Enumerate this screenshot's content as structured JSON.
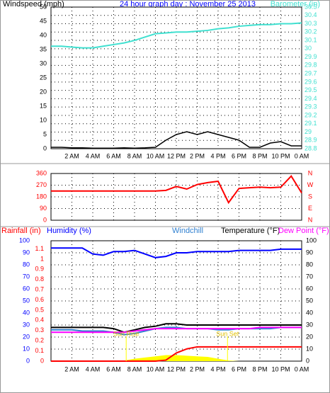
{
  "title": "24 hour graph day : November 25 2013",
  "chart_data": [
    {
      "type": "line",
      "xlim": [
        0,
        24
      ],
      "x": [
        0,
        1,
        2,
        3,
        4,
        5,
        6,
        7,
        8,
        9,
        10,
        11,
        12,
        13,
        14,
        15,
        16,
        17,
        18,
        19,
        20,
        21,
        22,
        23,
        24
      ],
      "xticks": [
        {
          "value": 2,
          "label": "2 AM"
        },
        {
          "value": 4,
          "label": "4 AM"
        },
        {
          "value": 6,
          "label": "6 AM"
        },
        {
          "value": 8,
          "label": "8 AM"
        },
        {
          "value": 10,
          "label": "10 AM"
        },
        {
          "value": 12,
          "label": "12 PM"
        },
        {
          "value": 14,
          "label": "2 PM"
        },
        {
          "value": 16,
          "label": "4 PM"
        },
        {
          "value": 18,
          "label": "6 PM"
        },
        {
          "value": 20,
          "label": "8 PM"
        },
        {
          "value": 22,
          "label": "10 PM"
        },
        {
          "value": 24,
          "label": "0 AM"
        }
      ],
      "ylim": [
        0,
        50
      ],
      "yticks": [
        0,
        5,
        10,
        15,
        20,
        25,
        30,
        35,
        40,
        45,
        50
      ],
      "ytick_color": "#000000",
      "y2lim": [
        28.8,
        30.5
      ],
      "y2ticks": [
        28.8,
        28.9,
        29,
        29.1,
        29.2,
        29.3,
        29.4,
        29.5,
        29.6,
        29.7,
        29.8,
        29.9,
        30,
        30.1,
        30.2,
        30.3,
        30.4,
        30.5
      ],
      "y2tick_color": "#40e0d0",
      "grid": true,
      "series": [
        {
          "name": "Windspeed (mph)",
          "color": "#000000",
          "values": [
            0.5,
            0.5,
            0.3,
            0.3,
            0.2,
            0.2,
            0.2,
            0.3,
            0.2,
            0.3,
            0.5,
            3,
            5,
            6,
            5,
            6,
            5,
            4,
            3,
            0.5,
            0.5,
            2,
            2.5,
            1,
            1
          ]
        },
        {
          "name": "Barometer (in)",
          "color": "#40e0d0",
          "axis": "y2",
          "values": [
            30.03,
            30.03,
            30.02,
            30.01,
            30.01,
            30.03,
            30.05,
            30.07,
            30.1,
            30.14,
            30.18,
            30.19,
            30.2,
            30.2,
            30.21,
            30.22,
            30.24,
            30.25,
            30.27,
            30.28,
            30.29,
            30.29,
            30.3,
            30.3,
            30.31
          ]
        }
      ]
    },
    {
      "type": "line",
      "xlim": [
        0,
        24
      ],
      "x": [
        0,
        1,
        2,
        3,
        4,
        5,
        6,
        7,
        8,
        9,
        10,
        11,
        12,
        13,
        14,
        15,
        16,
        17,
        18,
        19,
        20,
        21,
        22,
        23,
        24
      ],
      "xticks": [
        {
          "value": 2,
          "label": "2 AM"
        },
        {
          "value": 4,
          "label": "4 AM"
        },
        {
          "value": 6,
          "label": "6 AM"
        },
        {
          "value": 8,
          "label": "8 AM"
        },
        {
          "value": 10,
          "label": "10 AM"
        },
        {
          "value": 12,
          "label": "12 PM"
        },
        {
          "value": 14,
          "label": "2 PM"
        },
        {
          "value": 16,
          "label": "4 PM"
        },
        {
          "value": 18,
          "label": "6 PM"
        },
        {
          "value": 20,
          "label": "8 PM"
        },
        {
          "value": 22,
          "label": "10 PM"
        },
        {
          "value": 24,
          "label": "0 AM"
        }
      ],
      "ylim": [
        0,
        360
      ],
      "yticks": [
        0,
        90,
        180,
        270,
        360
      ],
      "ytick_color": "#ff0000",
      "y2lim": [
        0,
        360
      ],
      "y2ticks": [
        {
          "value": 0,
          "label": "N"
        },
        {
          "value": 90,
          "label": "E"
        },
        {
          "value": 180,
          "label": "S"
        },
        {
          "value": 270,
          "label": "W"
        },
        {
          "value": 360,
          "label": "N"
        }
      ],
      "y2tick_color": "#ff0000",
      "grid": true,
      "series": [
        {
          "color": "#ff0000",
          "values": [
            225,
            225,
            225,
            225,
            225,
            225,
            225,
            225,
            225,
            225,
            225,
            230,
            260,
            240,
            275,
            290,
            300,
            135,
            245,
            250,
            255,
            250,
            255,
            340,
            210
          ]
        }
      ]
    },
    {
      "type": "line",
      "xlim": [
        0,
        24
      ],
      "x": [
        0,
        1,
        2,
        3,
        4,
        5,
        6,
        7,
        8,
        9,
        10,
        11,
        12,
        13,
        14,
        15,
        16,
        17,
        18,
        19,
        20,
        21,
        22,
        23,
        24
      ],
      "xticks": [
        {
          "value": 2,
          "label": "2 AM"
        },
        {
          "value": 4,
          "label": "4 AM"
        },
        {
          "value": 6,
          "label": "6 AM"
        },
        {
          "value": 8,
          "label": "8 AM"
        },
        {
          "value": 10,
          "label": "10 AM"
        },
        {
          "value": 12,
          "label": "12 PM"
        },
        {
          "value": 14,
          "label": "2 PM"
        },
        {
          "value": 16,
          "label": "4 PM"
        },
        {
          "value": 18,
          "label": "6 PM"
        },
        {
          "value": 20,
          "label": "8 PM"
        },
        {
          "value": 22,
          "label": "10 PM"
        },
        {
          "value": 24,
          "label": "0 AM"
        }
      ],
      "ylim": [
        0,
        100
      ],
      "yticks": [
        0,
        10,
        20,
        30,
        40,
        50,
        60,
        70,
        80,
        90,
        100
      ],
      "ytick_color": "#0000ff",
      "y3lim": [
        0,
        1.18
      ],
      "y3ticks": [
        0,
        0.1,
        0.2,
        0.3,
        0.4,
        0.5,
        0.6,
        0.7,
        0.8,
        0.9,
        1,
        1.1
      ],
      "y3tick_color": "#ff0000",
      "y2lim": [
        0,
        100
      ],
      "y2ticks": [
        0,
        10,
        20,
        30,
        40,
        50,
        60,
        70,
        80,
        90,
        100
      ],
      "y2tick_color": "#000000",
      "grid": true,
      "series": [
        {
          "color": "#ffff00",
          "fill": true,
          "values": [
            0,
            0,
            0,
            0,
            0,
            0,
            0,
            0.5,
            2,
            3,
            4,
            5,
            5,
            4.5,
            4,
            3.5,
            2,
            0.5,
            0,
            0,
            0,
            0,
            0,
            0,
            0
          ]
        },
        {
          "name": "Rainfall (in)",
          "color": "#ff0000",
          "axis": "y3",
          "values": [
            0,
            0,
            0,
            0,
            0,
            0,
            0,
            0,
            0,
            0,
            0,
            0.01,
            0.08,
            0.12,
            0.14,
            0.14,
            0.14,
            0.14,
            0.14,
            0.14,
            0.14,
            0.14,
            0.14,
            0.14,
            0.14
          ]
        },
        {
          "name": "Humidity (%)",
          "color": "#0000ff",
          "values": [
            94,
            94,
            94,
            94,
            89,
            88,
            91,
            91,
            92,
            89,
            86,
            87,
            90,
            90,
            91,
            91,
            91,
            91,
            92,
            92,
            92,
            92,
            93,
            93,
            93
          ]
        },
        {
          "name": "Windchill",
          "color": "#3080d0",
          "axis": "y2",
          "values": [
            26,
            26,
            26,
            25,
            25,
            25,
            24,
            22,
            23,
            25,
            27,
            28,
            28,
            27,
            27,
            27,
            26,
            26,
            27,
            27,
            27,
            27,
            28,
            28,
            28
          ]
        },
        {
          "name": "Temperature (°F)",
          "color": "#000000",
          "axis": "y2",
          "values": [
            28,
            28,
            28,
            28,
            28,
            28,
            27,
            24,
            26,
            28,
            29,
            31,
            31,
            30,
            30,
            30,
            30,
            30,
            30,
            30,
            30,
            30,
            30,
            30,
            30
          ]
        },
        {
          "name": "Dew Point (°F)",
          "color": "#ff00ff",
          "axis": "y2",
          "values": [
            24,
            24,
            24,
            24,
            24,
            24,
            24,
            24,
            25,
            26,
            27,
            27,
            27,
            27,
            27,
            27,
            27,
            27,
            27,
            27,
            28,
            28,
            28,
            28,
            28
          ]
        }
      ],
      "annotations": [
        {
          "text": "Sun Rise",
          "x": 7.2
        },
        {
          "text": "Sun Set",
          "x": 16.9
        }
      ]
    }
  ]
}
